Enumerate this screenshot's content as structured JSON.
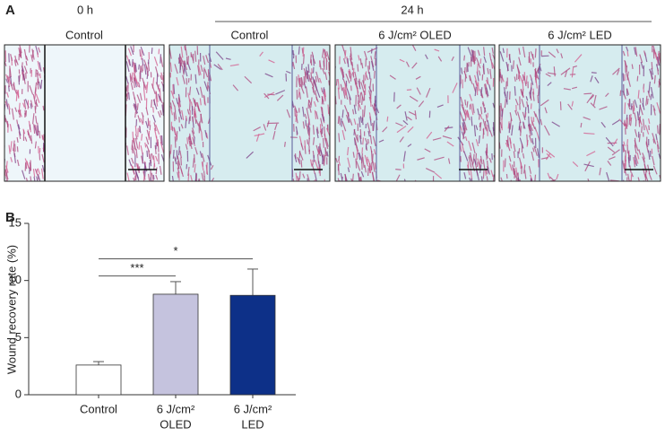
{
  "panel_a": {
    "label": "A",
    "time_0": "0 h",
    "time_24": "24 h",
    "images": [
      "Control",
      "Control",
      "6 J/cm² OLED",
      "6 J/cm² LED"
    ]
  },
  "chart_data": {
    "type": "bar",
    "label": "B",
    "ylabel": "Wound recovery rate (%)",
    "categories": [
      [
        "Control"
      ],
      [
        "6 J/cm²",
        "OLED"
      ],
      [
        "6 J/cm²",
        "LED"
      ]
    ],
    "values": [
      2.6,
      8.8,
      8.7
    ],
    "errors": [
      0.3,
      1.1,
      2.3
    ],
    "colors": [
      "#ffffff",
      "#c5c3de",
      "#0d3088"
    ],
    "ylim": [
      0,
      15
    ],
    "yticks": [
      0,
      5,
      10,
      15
    ],
    "annotations": [
      {
        "text": "***",
        "from": 0,
        "to": 1,
        "y": 10.4
      },
      {
        "text": "*",
        "from": 0,
        "to": 2,
        "y": 11.9
      }
    ]
  }
}
